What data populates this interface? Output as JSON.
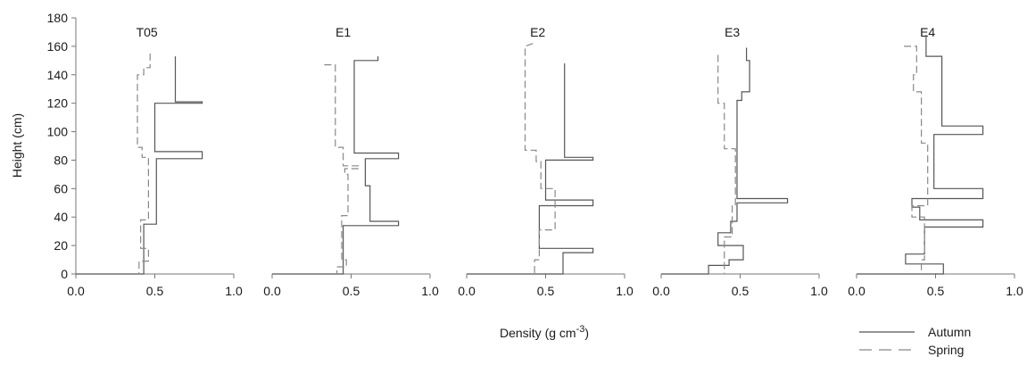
{
  "chart_data": {
    "type": "line",
    "ylabel": "Height (cm)",
    "xlabel": "Density (g cm",
    "xlabel_superscript": "-3",
    "xlabel_suffix": ")",
    "ylim": [
      0,
      180
    ],
    "yticks": [
      "0",
      "20",
      "40",
      "60",
      "80",
      "100",
      "120",
      "140",
      "160",
      "180"
    ],
    "xlim": [
      0.0,
      1.0
    ],
    "xticks": [
      "0.0",
      "0.5",
      "1.0"
    ],
    "grid": false,
    "legend_position": "bottom-right",
    "legend": [
      {
        "name": "Autumn",
        "style": "solid",
        "color": "#555555"
      },
      {
        "name": "Spring",
        "style": "dashed",
        "color": "#888888"
      }
    ],
    "panels": [
      {
        "title": "T05",
        "series": [
          {
            "name": "Autumn",
            "points": [
              [
                0.63,
                153
              ],
              [
                0.63,
                150
              ],
              [
                0.63,
                121
              ],
              [
                0.8,
                121
              ],
              [
                0.8,
                120
              ],
              [
                0.5,
                120
              ],
              [
                0.5,
                86
              ],
              [
                0.8,
                86
              ],
              [
                0.8,
                81
              ],
              [
                0.51,
                81
              ],
              [
                0.51,
                35
              ],
              [
                0.43,
                35
              ],
              [
                0.43,
                0
              ],
              [
                0,
                0
              ]
            ]
          },
          {
            "name": "Spring",
            "points": [
              [
                0.47,
                155
              ],
              [
                0.47,
                145
              ],
              [
                0.43,
                145
              ],
              [
                0.43,
                140
              ],
              [
                0.39,
                140
              ],
              [
                0.39,
                89
              ],
              [
                0.42,
                89
              ],
              [
                0.42,
                82
              ],
              [
                0.46,
                82
              ],
              [
                0.46,
                38
              ],
              [
                0.41,
                38
              ],
              [
                0.41,
                18
              ],
              [
                0.46,
                18
              ],
              [
                0.46,
                9
              ],
              [
                0.4,
                9
              ],
              [
                0.4,
                0
              ]
            ]
          }
        ]
      },
      {
        "title": "E1",
        "series": [
          {
            "name": "Autumn",
            "points": [
              [
                0.67,
                153
              ],
              [
                0.67,
                150
              ],
              [
                0.52,
                150
              ],
              [
                0.52,
                85
              ],
              [
                0.8,
                85
              ],
              [
                0.8,
                81
              ],
              [
                0.59,
                81
              ],
              [
                0.59,
                62
              ],
              [
                0.62,
                62
              ],
              [
                0.62,
                37
              ],
              [
                0.8,
                37
              ],
              [
                0.8,
                34
              ],
              [
                0.45,
                34
              ],
              [
                0.45,
                0
              ],
              [
                0,
                0
              ]
            ]
          },
          {
            "name": "Spring",
            "points": [
              [
                0.33,
                147
              ],
              [
                0.4,
                147
              ],
              [
                0.4,
                89
              ],
              [
                0.45,
                89
              ],
              [
                0.45,
                76
              ],
              [
                0.55,
                76
              ],
              [
                0.55,
                74
              ],
              [
                0.46,
                74
              ],
              [
                0.46,
                70
              ],
              [
                0.48,
                70
              ],
              [
                0.48,
                41
              ],
              [
                0.44,
                41
              ],
              [
                0.44,
                10
              ],
              [
                0.47,
                10
              ],
              [
                0.47,
                5
              ],
              [
                0.41,
                5
              ],
              [
                0.41,
                0
              ]
            ]
          }
        ]
      },
      {
        "title": "E2",
        "series": [
          {
            "name": "Autumn",
            "points": [
              [
                0.62,
                148
              ],
              [
                0.62,
                82
              ],
              [
                0.8,
                82
              ],
              [
                0.8,
                80
              ],
              [
                0.5,
                80
              ],
              [
                0.5,
                52
              ],
              [
                0.8,
                52
              ],
              [
                0.8,
                48
              ],
              [
                0.46,
                48
              ],
              [
                0.46,
                18
              ],
              [
                0.8,
                18
              ],
              [
                0.8,
                15
              ],
              [
                0.61,
                15
              ],
              [
                0.61,
                0
              ],
              [
                0,
                0
              ]
            ]
          },
          {
            "name": "Spring",
            "points": [
              [
                0.42,
                162
              ],
              [
                0.37,
                160
              ],
              [
                0.37,
                87
              ],
              [
                0.44,
                87
              ],
              [
                0.44,
                79
              ],
              [
                0.47,
                79
              ],
              [
                0.47,
                60
              ],
              [
                0.56,
                60
              ],
              [
                0.56,
                31
              ],
              [
                0.46,
                31
              ],
              [
                0.46,
                10
              ],
              [
                0.43,
                10
              ],
              [
                0.43,
                0
              ]
            ]
          }
        ]
      },
      {
        "title": "E3",
        "series": [
          {
            "name": "Autumn",
            "points": [
              [
                0.54,
                159
              ],
              [
                0.54,
                150
              ],
              [
                0.56,
                150
              ],
              [
                0.56,
                128
              ],
              [
                0.51,
                128
              ],
              [
                0.51,
                122
              ],
              [
                0.48,
                122
              ],
              [
                0.48,
                53
              ],
              [
                0.8,
                53
              ],
              [
                0.8,
                50
              ],
              [
                0.48,
                50
              ],
              [
                0.48,
                37
              ],
              [
                0.44,
                37
              ],
              [
                0.44,
                29
              ],
              [
                0.36,
                29
              ],
              [
                0.36,
                20
              ],
              [
                0.52,
                20
              ],
              [
                0.52,
                10
              ],
              [
                0.43,
                10
              ],
              [
                0.43,
                6
              ],
              [
                0.3,
                6
              ],
              [
                0.3,
                0
              ],
              [
                0,
                0
              ]
            ]
          },
          {
            "name": "Spring",
            "points": [
              [
                0.36,
                154
              ],
              [
                0.36,
                120
              ],
              [
                0.4,
                120
              ],
              [
                0.4,
                88
              ],
              [
                0.47,
                88
              ],
              [
                0.47,
                48
              ],
              [
                0.45,
                48
              ],
              [
                0.45,
                26
              ],
              [
                0.4,
                26
              ],
              [
                0.4,
                0
              ]
            ]
          }
        ]
      },
      {
        "title": "E4",
        "series": [
          {
            "name": "Autumn",
            "points": [
              [
                0.44,
                168
              ],
              [
                0.44,
                153
              ],
              [
                0.54,
                153
              ],
              [
                0.54,
                104
              ],
              [
                0.8,
                104
              ],
              [
                0.8,
                98
              ],
              [
                0.49,
                98
              ],
              [
                0.49,
                60
              ],
              [
                0.8,
                60
              ],
              [
                0.8,
                53
              ],
              [
                0.35,
                53
              ],
              [
                0.35,
                47
              ],
              [
                0.4,
                47
              ],
              [
                0.4,
                38
              ],
              [
                0.8,
                38
              ],
              [
                0.8,
                33
              ],
              [
                0.43,
                33
              ],
              [
                0.43,
                14
              ],
              [
                0.31,
                14
              ],
              [
                0.31,
                7
              ],
              [
                0.55,
                7
              ],
              [
                0.55,
                0
              ],
              [
                0,
                0
              ]
            ]
          },
          {
            "name": "Spring",
            "points": [
              [
                0.3,
                160
              ],
              [
                0.38,
                160
              ],
              [
                0.38,
                152
              ],
              [
                0.38,
                140
              ],
              [
                0.36,
                140
              ],
              [
                0.36,
                128
              ],
              [
                0.41,
                128
              ],
              [
                0.41,
                92
              ],
              [
                0.45,
                92
              ],
              [
                0.45,
                48
              ],
              [
                0.35,
                48
              ],
              [
                0.35,
                40
              ],
              [
                0.43,
                40
              ],
              [
                0.43,
                10
              ],
              [
                0.41,
                10
              ],
              [
                0.41,
                0
              ]
            ]
          }
        ]
      }
    ]
  }
}
